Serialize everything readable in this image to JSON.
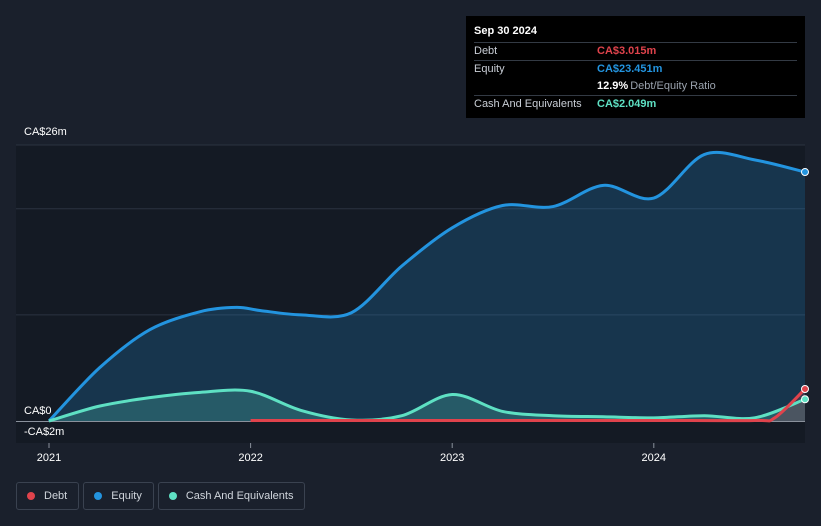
{
  "tooltip": {
    "date": "Sep 30 2024",
    "debt_label": "Debt",
    "debt_value": "CA$3.015m",
    "equity_label": "Equity",
    "equity_value": "CA$23.451m",
    "ratio_value": "12.9%",
    "ratio_label": "Debt/Equity Ratio",
    "cash_label": "Cash And Equivalents",
    "cash_value": "CA$2.049m"
  },
  "legend": [
    {
      "label": "Debt",
      "color": "#e0434c"
    },
    {
      "label": "Equity",
      "color": "#2394df"
    },
    {
      "label": "Cash And Equivalents",
      "color": "#5ee0c3"
    }
  ],
  "chart_data": {
    "type": "area",
    "title": "",
    "xlabel": "",
    "ylabel": "",
    "y_tick_labels": [
      "CA$26m",
      "CA$0",
      "-CA$2m"
    ],
    "x_tick_labels": [
      "2021",
      "2022",
      "2023",
      "2024"
    ],
    "ylim": [
      -2,
      26
    ],
    "xlim": [
      2021.0,
      2024.75
    ],
    "series": [
      {
        "name": "Equity",
        "color": "#2394df",
        "x": [
          2021.0,
          2021.25,
          2021.5,
          2021.75,
          2021.93,
          2022.05,
          2022.25,
          2022.5,
          2022.75,
          2023.0,
          2023.25,
          2023.5,
          2023.75,
          2024.0,
          2024.25,
          2024.5,
          2024.75
        ],
        "y": [
          0.0,
          5.0,
          8.6,
          10.3,
          10.7,
          10.4,
          10.0,
          10.2,
          14.6,
          18.2,
          20.3,
          20.2,
          22.2,
          21.0,
          25.1,
          24.6,
          23.451
        ]
      },
      {
        "name": "Cash And Equivalents",
        "color": "#5ee0c3",
        "x": [
          2021.0,
          2021.25,
          2021.5,
          2021.75,
          2022.0,
          2022.25,
          2022.5,
          2022.75,
          2023.0,
          2023.25,
          2023.5,
          2023.75,
          2024.0,
          2024.25,
          2024.5,
          2024.75
        ],
        "y": [
          0.0,
          1.4,
          2.2,
          2.7,
          2.8,
          1.0,
          0.1,
          0.5,
          2.5,
          0.9,
          0.5,
          0.4,
          0.3,
          0.5,
          0.3,
          2.049
        ]
      },
      {
        "name": "Debt",
        "color": "#e0434c",
        "x": [
          2022.0,
          2022.5,
          2023.0,
          2023.5,
          2024.0,
          2024.5,
          2024.6,
          2024.75
        ],
        "y": [
          0.05,
          0.05,
          0.05,
          0.05,
          0.05,
          0.05,
          0.3,
          3.015
        ]
      }
    ]
  }
}
